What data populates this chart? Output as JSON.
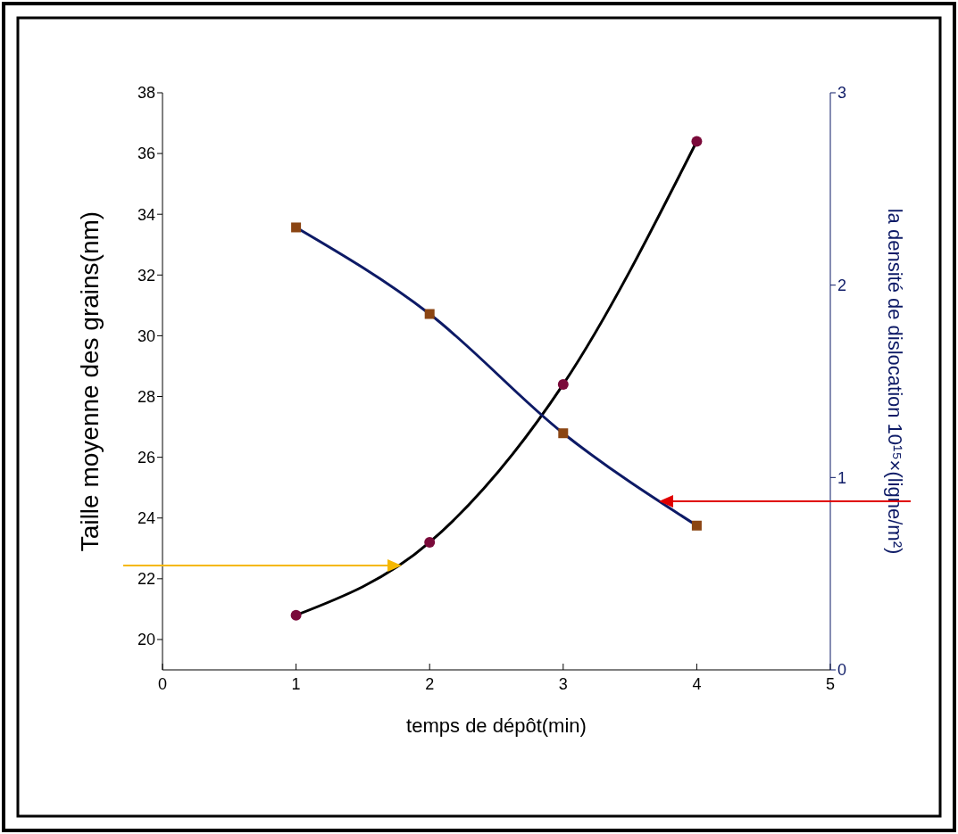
{
  "chart_data": {
    "type": "line",
    "xlabel": "temps de dépôt(min)",
    "ylabel": "Taille moyenne des grains(nm)",
    "y2label": "la densité de dislocation 10¹⁵×(ligne/m²)",
    "x": [
      1,
      2,
      3,
      4
    ],
    "series": [
      {
        "color": "#000000",
        "colors": [
          "#7a0a3a",
          "#7a0a3a",
          "#7a0a3a",
          "#7a0a3a"
        ],
        "marker": "circle",
        "values": [
          20.8,
          23.2,
          28.4,
          36.4
        ]
      },
      {
        "axis": "y2",
        "color": "#0d1a66",
        "colors": [
          "#8b4513",
          "#8b4513",
          "#8b4513",
          "#8b4513"
        ],
        "marker": "square",
        "values": [
          2.3,
          1.85,
          1.23,
          0.75
        ]
      }
    ],
    "xlim": [
      0,
      5
    ],
    "xticks": [
      0,
      1,
      2,
      3,
      4,
      5
    ],
    "ylim": [
      19,
      38
    ],
    "yticks": [
      20,
      22,
      24,
      26,
      28,
      30,
      32,
      34,
      36,
      38
    ],
    "y2lim": [
      0,
      3
    ],
    "y2ticks": [
      0,
      1,
      2,
      3
    ],
    "grid": false,
    "legend": false
  }
}
